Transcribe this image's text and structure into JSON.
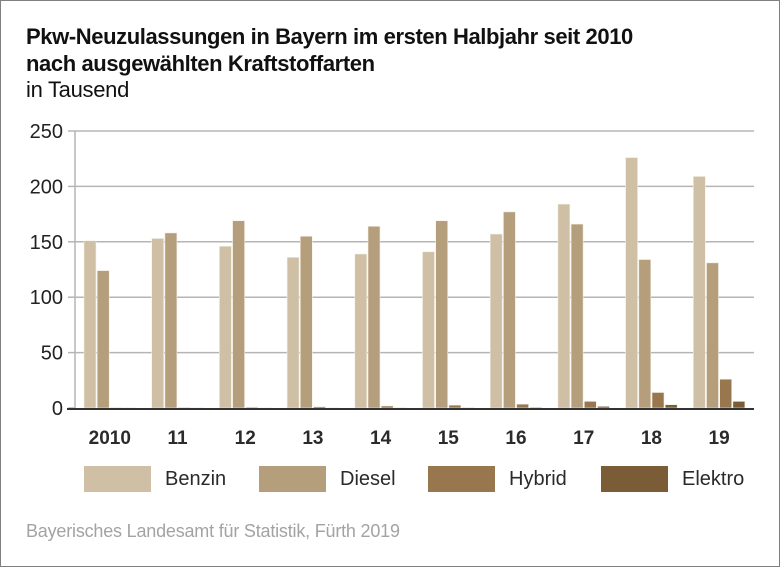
{
  "chart_data": {
    "type": "bar",
    "title": "Pkw-Neuzulassungen in Bayern im ersten Halbjahr seit 2010 nach ausgewählten Kraftstoffarten",
    "title_lines": [
      "Pkw-Neuzulassungen in Bayern im ersten Halbjahr seit 2010",
      "nach ausgewählten Kraftstoffarten"
    ],
    "subtitle": "in Tausend",
    "xlabel": "",
    "ylabel": "",
    "categories": [
      "2010",
      "11",
      "12",
      "13",
      "14",
      "15",
      "16",
      "17",
      "18",
      "19"
    ],
    "series": [
      {
        "name": "Benzin",
        "color": "#cfc0a5",
        "values": [
          151,
          153,
          146,
          136,
          139,
          141,
          157,
          184,
          226,
          209
        ]
      },
      {
        "name": "Diesel",
        "color": "#b49e7b",
        "values": [
          124,
          158,
          169,
          155,
          164,
          169,
          177,
          166,
          134,
          131
        ]
      },
      {
        "name": "Hybrid",
        "color": "#98764e",
        "values": [
          0.5,
          0.6,
          0.8,
          1.2,
          1.8,
          2.6,
          3.5,
          6,
          14,
          26
        ]
      },
      {
        "name": "Elektro",
        "color": "#7a5c36",
        "values": [
          0.1,
          0.1,
          0.2,
          0.3,
          0.4,
          0.5,
          0.7,
          1.5,
          3,
          6
        ]
      }
    ],
    "ylim": [
      0,
      250
    ],
    "yticks": [
      0,
      50,
      100,
      150,
      200,
      250
    ],
    "grid": true,
    "legend_position": "bottom",
    "source": "Bayerisches Landesamt für Statistik, Fürth 2019"
  },
  "colors": {
    "gridline": "#b5b5b5",
    "baseline": "#333333",
    "text": "#222222",
    "source_text": "#a3a3a3"
  }
}
